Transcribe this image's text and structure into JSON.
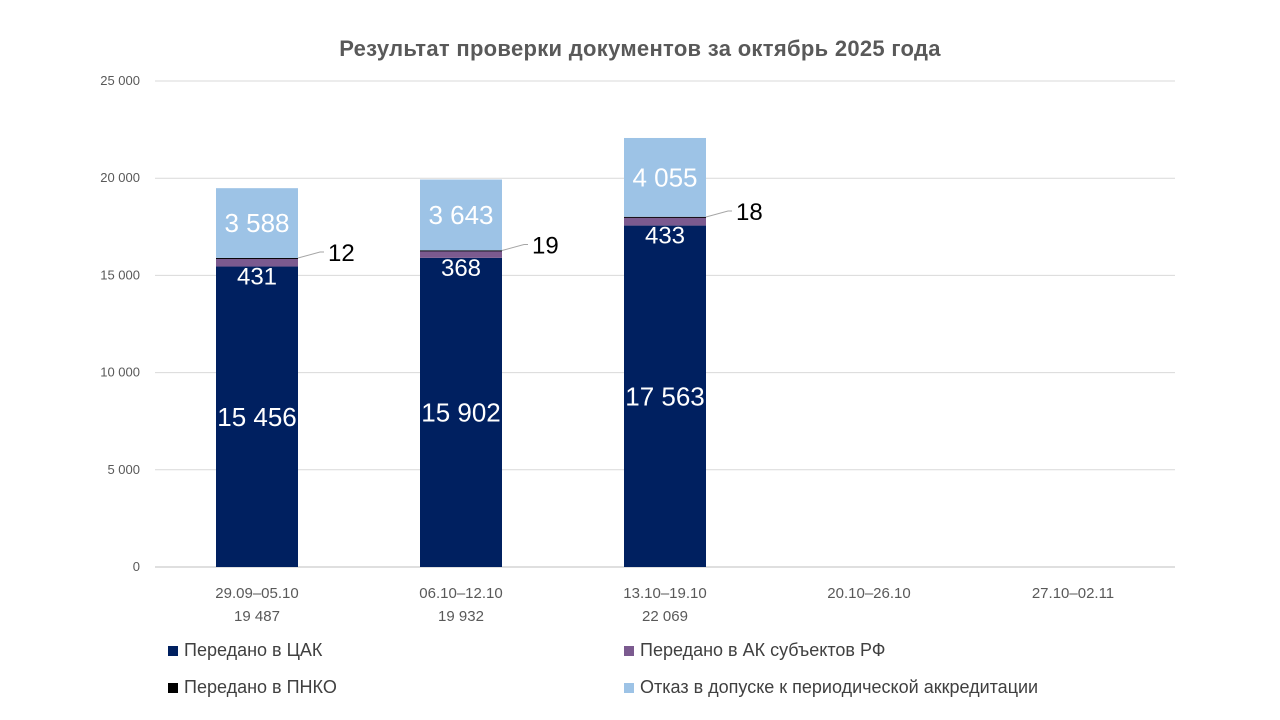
{
  "chart_data": {
    "type": "bar",
    "stacked": true,
    "title": "Результат проверки документов за октябрь 2025 года",
    "xlabel": "",
    "ylabel": "",
    "ylim": [
      0,
      25000
    ],
    "yticks": [
      0,
      5000,
      10000,
      15000,
      20000,
      25000
    ],
    "ytick_labels": [
      "0",
      "5 000",
      "10 000",
      "15 000",
      "20 000",
      "25 000"
    ],
    "grid": true,
    "categories": [
      "29.09–05.10",
      "06.10–12.10",
      "13.10–19.10",
      "20.10–26.10",
      "27.10–02.11"
    ],
    "category_totals": [
      "19 487",
      "19 932",
      "22 069",
      "",
      ""
    ],
    "series": [
      {
        "name": "Передано в ЦАК",
        "color": "#002060",
        "label_color": "#ffffff",
        "values": [
          15456,
          15902,
          17563,
          null,
          null
        ],
        "labels": [
          "15 456",
          "15 902",
          "17 563",
          "",
          ""
        ]
      },
      {
        "name": "Передано в АК субъектов РФ",
        "color": "#7b5a8f",
        "label_color": "#ffffff",
        "values": [
          431,
          368,
          433,
          null,
          null
        ],
        "labels": [
          "431",
          "368",
          "433",
          "",
          ""
        ]
      },
      {
        "name": "Передано в ПНКО",
        "color": "#000000",
        "label_color": "#000000",
        "values": [
          12,
          19,
          18,
          null,
          null
        ],
        "labels": [
          "12",
          "19",
          "18",
          "",
          ""
        ]
      },
      {
        "name": "Отказ в допуске к периодической аккредитации",
        "color": "#9dc3e6",
        "label_color": "#ffffff",
        "values": [
          3588,
          3643,
          4055,
          null,
          null
        ],
        "labels": [
          "3 588",
          "3 643",
          "4 055",
          "",
          ""
        ]
      }
    ],
    "legend_position": "bottom"
  }
}
